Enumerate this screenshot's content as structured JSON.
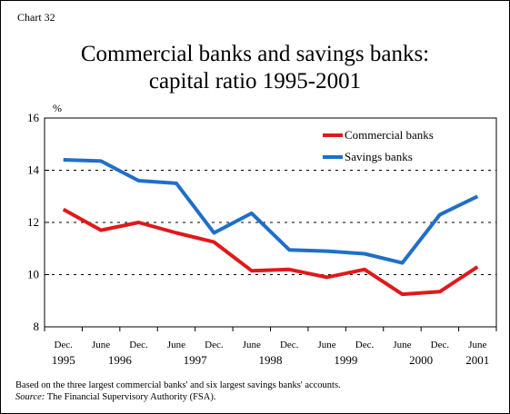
{
  "chart_label": "Chart 32",
  "title": {
    "line1": "Commercial banks and savings banks:",
    "line2": "capital ratio 1995-2001"
  },
  "notes": {
    "line1": "Based on the three largest commercial banks' and six largest savings banks' accounts.",
    "source_label": "Source:",
    "source_text": " The Financial Supervisory Authority (FSA)."
  },
  "chart_data": {
    "type": "line",
    "ylabel": "%",
    "ylim": [
      8,
      16
    ],
    "yticks": [
      8,
      10,
      12,
      14,
      16
    ],
    "grid": "dashed horizontal",
    "legend_position": "top-right",
    "x": [
      "Dec. 1995",
      "June 1996",
      "Dec. 1996",
      "June 1997",
      "Dec. 1997",
      "June 1998",
      "Dec. 1998",
      "June 1999",
      "Dec. 1999",
      "June 2000",
      "Dec. 2000",
      "June 2001"
    ],
    "x_month_labels": [
      "Dec.",
      "June",
      "Dec.",
      "June",
      "Dec.",
      "June",
      "Dec.",
      "June",
      "Dec.",
      "June",
      "Dec.",
      "June"
    ],
    "x_year_labels": [
      {
        "label": "1995",
        "at": 0
      },
      {
        "label": "1996",
        "at": 1.5
      },
      {
        "label": "1997",
        "at": 3.5
      },
      {
        "label": "1998",
        "at": 5.5
      },
      {
        "label": "1999",
        "at": 7.5
      },
      {
        "label": "2000",
        "at": 9.5
      },
      {
        "label": "2001",
        "at": 11
      }
    ],
    "series": [
      {
        "name": "Commercial banks",
        "color": "#e0191b",
        "values": [
          12.5,
          11.7,
          12.0,
          11.6,
          11.25,
          10.15,
          10.2,
          9.9,
          10.2,
          9.25,
          9.35,
          10.3
        ]
      },
      {
        "name": "Savings banks",
        "color": "#1f6fc8",
        "values": [
          14.4,
          14.35,
          13.6,
          13.5,
          11.6,
          12.35,
          10.95,
          10.9,
          10.8,
          10.45,
          12.3,
          13.0
        ]
      }
    ]
  }
}
